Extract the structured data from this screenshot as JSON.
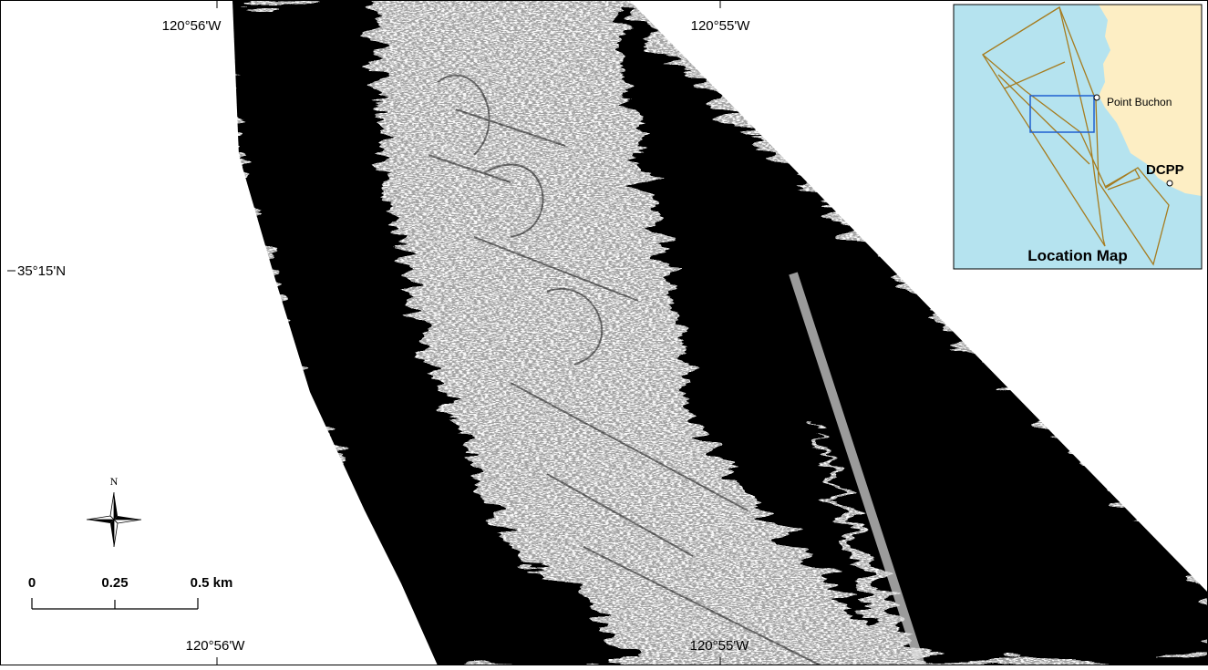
{
  "map": {
    "lon_labels_top": [
      "120°56'W",
      "120°55'W"
    ],
    "lon_labels_bottom": [
      "120°56'W",
      "120°55'W"
    ],
    "lat_labels": [
      "35°15'N"
    ],
    "north_arrow": "N",
    "scale_bar": {
      "labels": [
        "0",
        "0.25",
        "0.5 km"
      ]
    },
    "inset": {
      "title": "Location Map",
      "labels": [
        "Point Buchon",
        "DCPP"
      ]
    }
  }
}
